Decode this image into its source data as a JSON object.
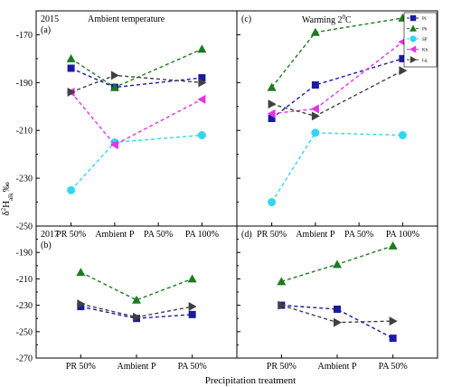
{
  "figure": {
    "xlabel": "Precipitation treatment",
    "ylabel_main": "δ",
    "ylabel_sup": "2",
    "ylabel_mid": "H",
    "ylabel_sub": "alk",
    "ylabel_unit": "‰",
    "colors": {
      "Pl": "#1a1aa6",
      "Pb": "#1e7a1e",
      "SP": "#33d6f0",
      "Kh": "#e633e6",
      "Lg": "#404040"
    }
  },
  "legend": {
    "placement": "top-right of panel (c)",
    "entries": [
      "Pl",
      "Pb",
      "SP",
      "Kh",
      "Lg"
    ]
  },
  "chart_data": [
    {
      "type": "line",
      "panel": "(a)",
      "year": "2015",
      "subtitle": "Ambient  temperature",
      "categories": [
        "PR 50%",
        "Ambient P",
        "PA 50%",
        "PA 100%"
      ],
      "ylim": [
        -250,
        -160
      ],
      "yticks": [
        -250,
        -230,
        -210,
        -190,
        -170
      ],
      "series": [
        {
          "name": "Pl",
          "marker": "square",
          "values": [
            -184,
            -192,
            null,
            -188
          ]
        },
        {
          "name": "Pb",
          "marker": "triangle-up",
          "values": [
            -180,
            -192,
            null,
            -176
          ]
        },
        {
          "name": "SP",
          "marker": "circle",
          "values": [
            -235,
            -215,
            null,
            -212
          ]
        },
        {
          "name": "Kh",
          "marker": "triangle-left",
          "values": [
            -194,
            -216,
            null,
            -197
          ]
        },
        {
          "name": "Lg",
          "marker": "triangle-right",
          "values": [
            -194,
            -187,
            null,
            -190
          ]
        }
      ]
    },
    {
      "type": "line",
      "panel": "(c)",
      "subtitle_main": "Warming 2",
      "subtitle_sup": "0",
      "subtitle_end": "C",
      "categories": [
        "PR 50%",
        "Ambient P",
        "PA 50%",
        "PA 100%"
      ],
      "ylim": [
        -250,
        -160
      ],
      "series": [
        {
          "name": "Pl",
          "marker": "square",
          "values": [
            -205,
            -191,
            null,
            -180
          ]
        },
        {
          "name": "Pb",
          "marker": "triangle-up",
          "values": [
            -192,
            -169,
            null,
            -163
          ]
        },
        {
          "name": "SP",
          "marker": "circle",
          "values": [
            -240,
            -211,
            null,
            -212
          ]
        },
        {
          "name": "Kh",
          "marker": "triangle-left",
          "values": [
            -203,
            -201,
            null,
            -173
          ]
        },
        {
          "name": "Lg",
          "marker": "triangle-right",
          "values": [
            -199,
            -204,
            null,
            -185
          ]
        }
      ]
    },
    {
      "type": "line",
      "panel": "(b)",
      "year": "2017",
      "categories": [
        "PR 50%",
        "Ambient P",
        "PA 50%"
      ],
      "ylim": [
        -270,
        -170
      ],
      "yticks": [
        -270,
        -250,
        -230,
        -210,
        -190
      ],
      "series": [
        {
          "name": "Pl",
          "marker": "square",
          "values": [
            -231,
            -240,
            -237
          ]
        },
        {
          "name": "Pb",
          "marker": "triangle-up",
          "values": [
            -205,
            -226,
            -210
          ]
        },
        {
          "name": "Lg",
          "marker": "triangle-right",
          "values": [
            -229,
            -239,
            -231
          ]
        }
      ]
    },
    {
      "type": "line",
      "panel": "(d)",
      "categories": [
        "PR 50%",
        "Ambient P",
        "PA 50%"
      ],
      "ylim": [
        -270,
        -170
      ],
      "series": [
        {
          "name": "Pl",
          "marker": "square",
          "values": [
            -230,
            -233,
            -255
          ]
        },
        {
          "name": "Pb",
          "marker": "triangle-up",
          "values": [
            -212,
            -199,
            -185
          ]
        },
        {
          "name": "Lg",
          "marker": "triangle-right",
          "values": [
            -230,
            -243,
            -242
          ]
        }
      ]
    }
  ]
}
